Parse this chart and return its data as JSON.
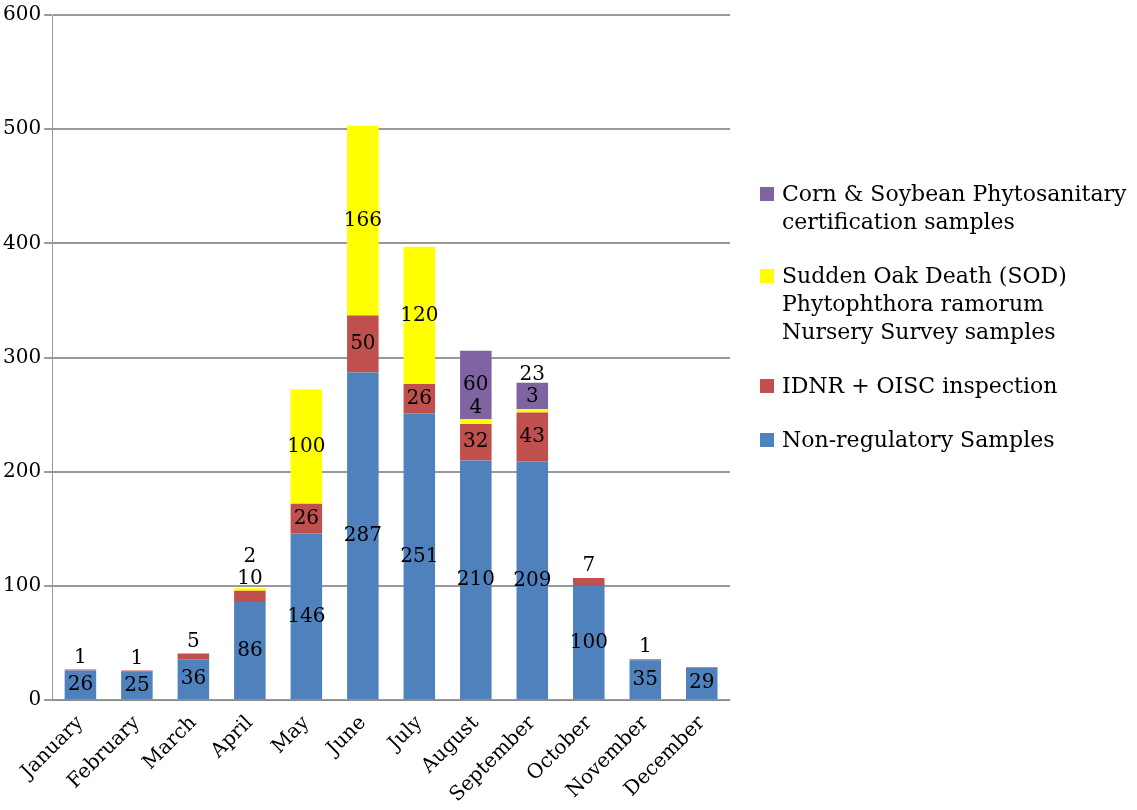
{
  "chart_data": {
    "type": "bar",
    "stacked": true,
    "categories": [
      "January",
      "February",
      "March",
      "April",
      "May",
      "June",
      "July",
      "August",
      "September",
      "October",
      "November",
      "December"
    ],
    "series": [
      {
        "name": "Non-regulatory Samples",
        "color": "#4f81bd",
        "values": [
          26,
          25,
          36,
          86,
          146,
          287,
          251,
          210,
          209,
          100,
          35,
          29
        ]
      },
      {
        "name": "IDNR + OISC inspection",
        "color": "#c0504d",
        "values": [
          1,
          1,
          5,
          10,
          26,
          50,
          26,
          32,
          43,
          7,
          1,
          null
        ]
      },
      {
        "name": "Sudden Oak Death (SOD) Phytophthora ramorum Nursery Survey samples",
        "color": "#ffff00",
        "values": [
          null,
          null,
          null,
          2,
          100,
          166,
          120,
          4,
          3,
          null,
          null,
          null
        ]
      },
      {
        "name": "Corn & Soybean Phytosanitary certification samples",
        "color": "#8064a2",
        "values": [
          null,
          null,
          null,
          null,
          null,
          null,
          null,
          60,
          23,
          null,
          null,
          null
        ]
      }
    ],
    "ylim": [
      0,
      600
    ],
    "yticks": [
      0,
      100,
      200,
      300,
      400,
      500,
      600
    ],
    "grid": "y",
    "legend": "right",
    "data_labels": true
  }
}
